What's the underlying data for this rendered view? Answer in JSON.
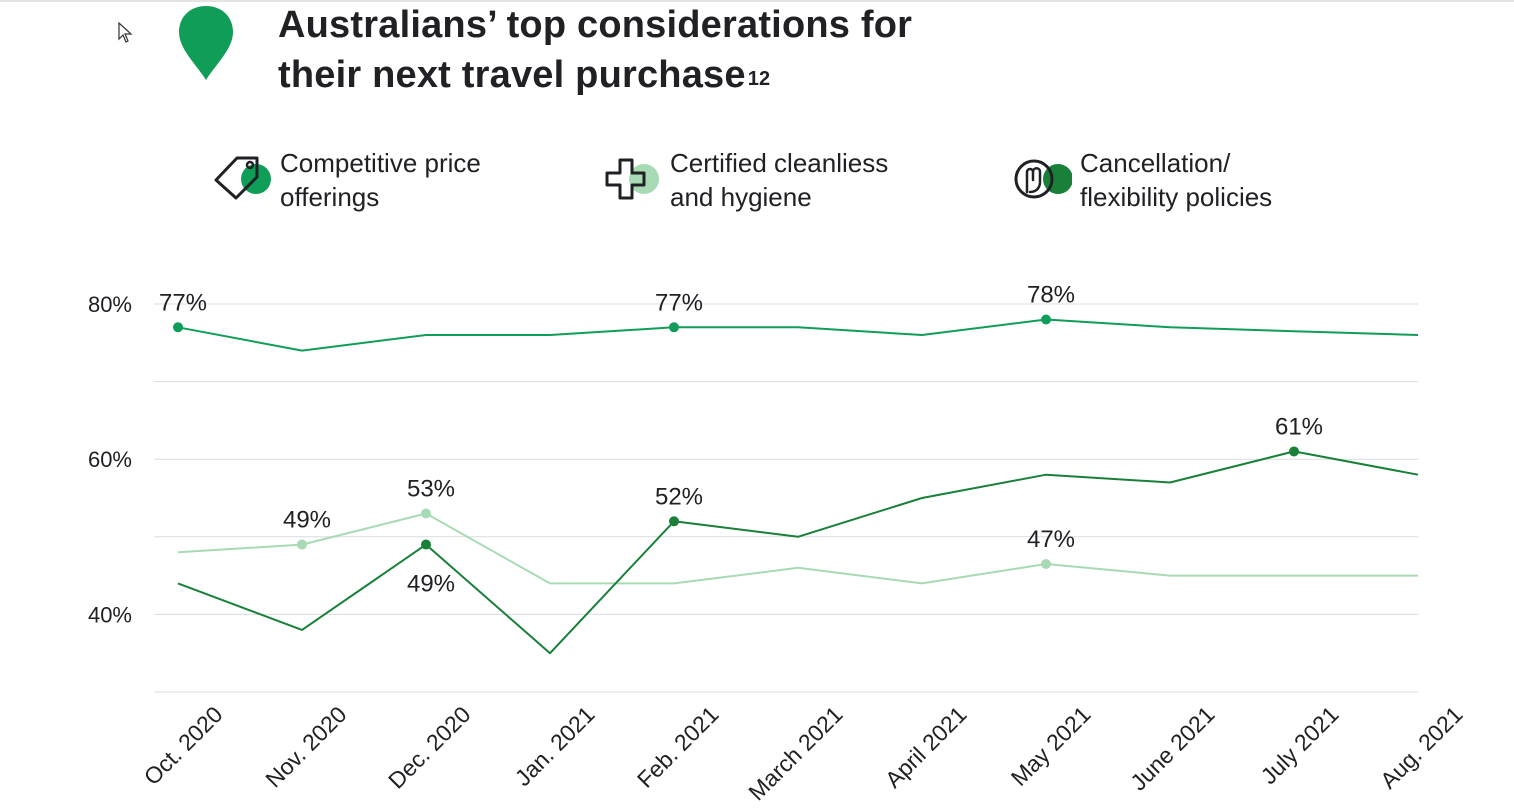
{
  "title": {
    "text": "Australians’ top considerations for\ntheir next travel purchase",
    "line1": "Australians’ top considerations for",
    "line2": "their next travel purchase",
    "superscript": "12"
  },
  "icons": {
    "header": "location-pin-icon",
    "cursor": "mouse-pointer-icon",
    "legend": [
      "price-tag-icon",
      "medical-cross-icon",
      "hand-icon"
    ]
  },
  "chart_data": {
    "type": "line",
    "title": "Australians’ top considerations for their next travel purchase",
    "xlabel": "",
    "ylabel": "",
    "categories": [
      "Oct. 2020",
      "Nov. 2020",
      "Dec. 2020",
      "Jan. 2021",
      "Feb. 2021",
      "March 2021",
      "April 2021",
      "May 2021",
      "June 2021",
      "July 2021",
      "Aug. 2021"
    ],
    "ylim": [
      30,
      80
    ],
    "yticks": [
      40,
      60,
      80
    ],
    "ytick_labels": [
      "40%",
      "60%",
      "80%"
    ],
    "gridlines": [
      30,
      40,
      50,
      60,
      70,
      80
    ],
    "grid": true,
    "legend_position": "top",
    "series": [
      {
        "name": "Competitive price offerings",
        "color": "#0f9d58",
        "values": [
          77,
          74,
          76,
          76,
          77,
          77,
          76,
          78,
          77,
          76.5,
          76
        ],
        "labels": [
          {
            "index": 0,
            "text": "77%",
            "position": "above"
          },
          {
            "index": 4,
            "text": "77%",
            "position": "above"
          },
          {
            "index": 7,
            "text": "78%",
            "position": "above"
          }
        ]
      },
      {
        "name": "Certified cleanliess and hygiene",
        "color": "#a8dab5",
        "values": [
          48,
          49,
          53,
          44,
          44,
          46,
          44,
          46.5,
          45,
          45,
          45
        ],
        "labels": [
          {
            "index": 1,
            "text": "49%",
            "position": "above"
          },
          {
            "index": 2,
            "text": "53%",
            "position": "above"
          },
          {
            "index": 7,
            "text": "47%",
            "position": "above"
          }
        ]
      },
      {
        "name": "Cancellation/ flexibility policies",
        "color": "#188038",
        "values": [
          44,
          38,
          49,
          35,
          52,
          50,
          55,
          58,
          57,
          61,
          58
        ],
        "labels": [
          {
            "index": 2,
            "text": "49%",
            "position": "below"
          },
          {
            "index": 4,
            "text": "52%",
            "position": "above"
          },
          {
            "index": 9,
            "text": "61%",
            "position": "above"
          }
        ]
      }
    ]
  },
  "legend": [
    {
      "label": "Competitive price\nofferings",
      "dot_color": "#0f9d58",
      "icon": "price-tag-icon"
    },
    {
      "label": "Certified cleanliess\nand hygiene",
      "dot_color": "#a8dab5",
      "icon": "medical-cross-icon"
    },
    {
      "label": "Cancellation/\nflexibility policies",
      "dot_color": "#188038",
      "icon": "hand-icon"
    }
  ]
}
